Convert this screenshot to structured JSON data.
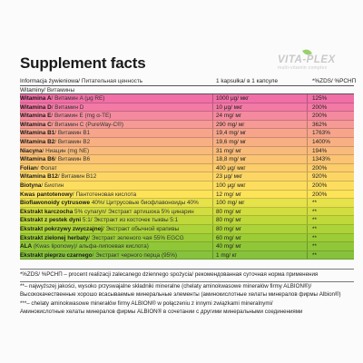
{
  "title": "Supplement facts",
  "logo": {
    "main": "VITA-PLEX",
    "sub": "multi-vitamin complex"
  },
  "header": {
    "info_label": "Informacja żywieniowa/",
    "info_label_ru": "Питательная ценность",
    "serving_label": "1 kapsułka/",
    "serving_label_ru": "в 1 капсуле",
    "pct_label": "*%ZDS/ %РСНП",
    "vitamins_label": "Witaminy/",
    "vitamins_label_ru": "Витамины"
  },
  "rows": [
    {
      "name": "Witamina A",
      "ru": "/ Витамин A (μg RE)",
      "amount": "1000 μg/ мкг",
      "pct": "125%",
      "color": "#f06fa6"
    },
    {
      "name": "Witamina D",
      "ru": "/ Витамин D",
      "amount": "10 μg/ мкг",
      "pct": "200%",
      "color": "#f27aa4"
    },
    {
      "name": "Witamina E",
      "ru": "/ Витамин E (mg α-TE)",
      "amount": "24 mg/ мг",
      "pct": "200%",
      "color": "#f48a9e"
    },
    {
      "name": "Witamina C",
      "ru": "/ Витамин C (PureWay-C®)",
      "amount": "290 mg/ мг",
      "pct": "362%",
      "color": "#f59a95"
    },
    {
      "name": "Witamina B1",
      "ru": "/ Витамин B1",
      "amount": "19,4 mg/ мг",
      "pct": "1763%",
      "color": "#f6a58b"
    },
    {
      "name": "Witamina B2",
      "ru": "/ Витамин B2",
      "amount": "19,6 mg/ мг",
      "pct": "1400%",
      "color": "#f8b083"
    },
    {
      "name": "Niacyna",
      "ru": "/ Ниацин (mg NE)",
      "amount": "31 mg/ мг",
      "pct": "194%",
      "color": "#f9bb7b"
    },
    {
      "name": "Witamina B6",
      "ru": "/ Витамин B6",
      "amount": "18,8 mg/ мг",
      "pct": "1343%",
      "color": "#fac473"
    },
    {
      "name": "Folian",
      "ru": "/ Фолат",
      "amount": "400 μg/ мкг",
      "pct": "200%",
      "color": "#fbcd6b"
    },
    {
      "name": "Witamina B12",
      "ru": "/ Витамин B12",
      "amount": "23 μg/ мкг",
      "pct": "920%",
      "color": "#fcd665"
    },
    {
      "name": "Biotyna",
      "ru": "/ Биотин",
      "amount": "100 μg/ мкг",
      "pct": "200%",
      "color": "#fddd5e"
    },
    {
      "name": "Kwas pantotenowy",
      "ru": "/ Пантотеновая кислота",
      "amount": "12 mg/ мг",
      "pct": "200%",
      "color": "#fde358"
    },
    {
      "name": "Bioflawonoidy cytrusowe",
      "ru": " 40%/ Цитрусовые биофлавоноиды 40%",
      "amount": "100 mg/ мг",
      "pct": "**",
      "color": "#e6e24a"
    },
    {
      "name": "Ekstrakt karczocha",
      "ru": " 5% cynaryn/ Экстракт артишока 5% цинарин",
      "amount": "80 mg/ мг",
      "pct": "**",
      "color": "#d2dd3f"
    },
    {
      "name": "Ekstrakt z pestek dyni",
      "ru": " 5:1/ Экстракт из косточек тыквы 5:1",
      "amount": "80 mg/ мг",
      "pct": "**",
      "color": "#bfd83a"
    },
    {
      "name": "Ekstrakt pokrzywy zwyczajnej",
      "ru": "/ Экстракт обычной крапивы",
      "amount": "80 mg/ мг",
      "pct": "**",
      "color": "#acd337"
    },
    {
      "name": "Ekstrakt zielonej herbaty",
      "ru": "/ Экстракт зеленого чая 55% EGCG",
      "amount": "60 mg/ мг",
      "pct": "**",
      "color": "#9ccd36"
    },
    {
      "name": "ALA",
      "ru": " (Kwas liponowy)/ альфа-липоевая кислота)",
      "amount": "40 mg/ мг",
      "pct": "**",
      "color": "#90c738"
    },
    {
      "name": "Ekstrakt pieprzu czarnego",
      "ru": "/ Экстракт черного перца (95%)",
      "amount": "1 mg/ кг",
      "pct": "**",
      "color": "#86c23b"
    }
  ],
  "footnotes": {
    "f1": "*%ZDS/ %РСНП – procent realizacji zalecanego dziennego spożycia/ рекомендованная суточная норма применения",
    "f2": "**– najwyższej jakości, wysoko przyswajalne składniki mineralne (chelaty aminokwasowe minerałów firmy ALBION®)/",
    "f3": "Высококачественные хорошо всасываемые минеральные элементы (аминокислотные хелаты минералов фирмы Albion®)",
    "f4": "***– chelaty aminokwasowe minerałów firmy ALBION® w połączeniu z innymi związkami mineralnymi/",
    "f5": "Аминокислотные хелаты минералов фирмы ALBION® в сочетании с другими минеральными соединениями"
  }
}
